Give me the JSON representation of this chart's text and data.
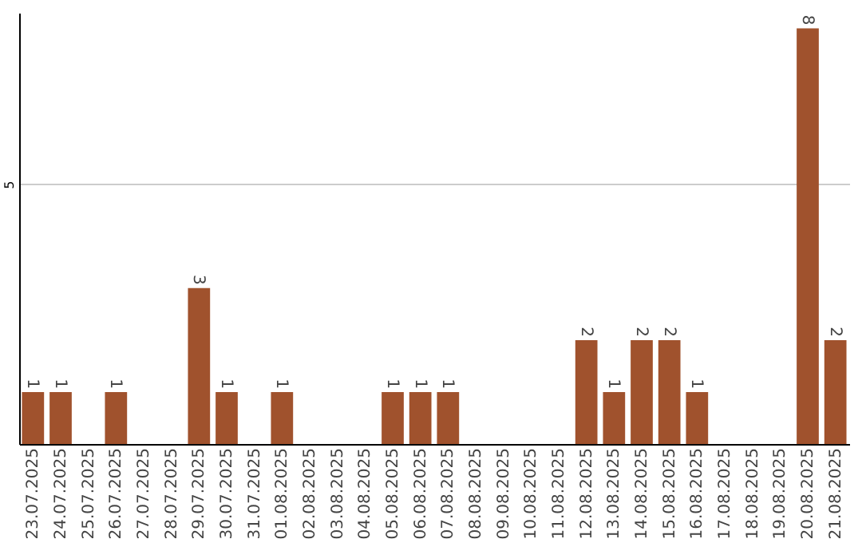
{
  "chart_data": {
    "type": "bar",
    "categories": [
      "23.07.2025",
      "24.07.2025",
      "25.07.2025",
      "26.07.2025",
      "27.07.2025",
      "28.07.2025",
      "29.07.2025",
      "30.07.2025",
      "31.07.2025",
      "01.08.2025",
      "02.08.2025",
      "03.08.2025",
      "04.08.2025",
      "05.08.2025",
      "06.08.2025",
      "07.08.2025",
      "08.08.2025",
      "09.08.2025",
      "10.08.2025",
      "11.08.2025",
      "12.08.2025",
      "13.08.2025",
      "14.08.2025",
      "15.08.2025",
      "16.08.2025",
      "17.08.2025",
      "18.08.2025",
      "19.08.2025",
      "20.08.2025",
      "21.08.2025"
    ],
    "values": [
      1,
      1,
      0,
      1,
      0,
      0,
      3,
      1,
      0,
      1,
      0,
      0,
      0,
      1,
      1,
      1,
      0,
      0,
      0,
      0,
      2,
      1,
      2,
      2,
      1,
      0,
      0,
      0,
      8,
      2
    ],
    "value_labels": [
      "1",
      "1",
      null,
      "1",
      null,
      null,
      "3",
      "1",
      null,
      "1",
      null,
      null,
      null,
      "1",
      "1",
      "1",
      null,
      null,
      null,
      null,
      "2",
      "1",
      "2",
      "2",
      "1",
      null,
      null,
      null,
      "8",
      "2"
    ],
    "color": "#a0522d",
    "ylim": [
      0,
      8.3
    ],
    "yticks": [
      5
    ],
    "grid": "y"
  }
}
